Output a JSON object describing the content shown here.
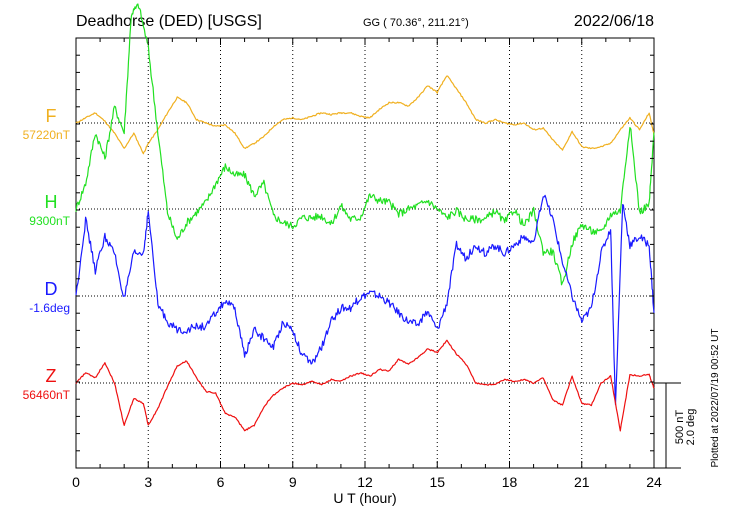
{
  "header": {
    "station": "Deadhorse (DED)  [USGS]",
    "coords": "GG ( 70.36°, 211.21°)",
    "date": "2022/06/18"
  },
  "side_note": "Plotted at 2022/07/19 00:52 UT",
  "scale_bar": {
    "line1": "500 nT",
    "line2": "2.0 deg"
  },
  "chart_data": {
    "type": "line",
    "xlabel": "U T (hour)",
    "xlim": [
      0,
      24
    ],
    "xticks": [
      "0",
      "3",
      "6",
      "9",
      "12",
      "15",
      "18",
      "21",
      "24"
    ],
    "scale_nT_per_bar": 500,
    "series": [
      {
        "name": "F",
        "baseline_label": "57220nT",
        "color": "#f0b020",
        "x": [
          0,
          0.4,
          0.8,
          1.2,
          1.6,
          2.0,
          2.4,
          2.8,
          3.0,
          3.4,
          3.8,
          4.2,
          4.6,
          5.0,
          5.4,
          5.8,
          6.2,
          6.6,
          7.0,
          7.4,
          7.8,
          8.2,
          8.6,
          9.0,
          9.4,
          9.8,
          10.2,
          10.6,
          11.0,
          11.4,
          11.8,
          12.2,
          12.6,
          13.0,
          13.4,
          13.8,
          14.2,
          14.6,
          15.0,
          15.4,
          15.8,
          16.2,
          16.6,
          17.0,
          17.4,
          17.8,
          18.2,
          18.6,
          19.0,
          19.4,
          19.8,
          20.2,
          20.6,
          21.0,
          21.4,
          21.8,
          22.2,
          22.6,
          23.0,
          23.4,
          23.8,
          24.0
        ],
        "values": [
          0,
          30,
          60,
          10,
          -60,
          -150,
          -60,
          -180,
          -120,
          -40,
          60,
          150,
          120,
          20,
          0,
          -20,
          -10,
          -60,
          -150,
          -120,
          -80,
          -20,
          20,
          30,
          20,
          40,
          60,
          50,
          60,
          60,
          40,
          30,
          80,
          120,
          120,
          100,
          150,
          220,
          180,
          280,
          200,
          120,
          20,
          0,
          20,
          0,
          -10,
          0,
          -40,
          -30,
          -100,
          -160,
          -50,
          -140,
          -150,
          -140,
          -120,
          -40,
          30,
          -40,
          60,
          -70
        ]
      },
      {
        "name": "H",
        "baseline_label": "9300nT",
        "color": "#22e022",
        "x": [
          0,
          0.4,
          0.8,
          1.2,
          1.6,
          2.0,
          2.3,
          2.6,
          3.0,
          3.4,
          3.8,
          4.2,
          4.6,
          5.0,
          5.4,
          5.8,
          6.2,
          6.6,
          7.0,
          7.4,
          7.8,
          8.2,
          8.6,
          9.0,
          9.4,
          9.8,
          10.2,
          10.6,
          11.0,
          11.4,
          11.8,
          12.2,
          12.6,
          13.0,
          13.4,
          13.8,
          14.2,
          14.6,
          15.0,
          15.4,
          15.8,
          16.2,
          16.6,
          17.0,
          17.4,
          17.8,
          18.2,
          18.6,
          19.0,
          19.4,
          19.8,
          20.2,
          20.6,
          21.0,
          21.4,
          21.8,
          22.2,
          22.6,
          23.0,
          23.4,
          23.8,
          24.0
        ],
        "values": [
          0,
          150,
          450,
          300,
          600,
          450,
          1150,
          1200,
          950,
          450,
          -20,
          -180,
          -80,
          -20,
          40,
          150,
          250,
          200,
          200,
          80,
          150,
          -40,
          -80,
          -100,
          -50,
          -50,
          -40,
          -90,
          20,
          -60,
          -50,
          80,
          50,
          40,
          -30,
          0,
          20,
          50,
          0,
          -50,
          -10,
          -60,
          -60,
          -60,
          -10,
          -80,
          0,
          -100,
          -10,
          -250,
          -250,
          -450,
          -200,
          -90,
          -130,
          -140,
          -30,
          -10,
          500,
          -20,
          30,
          450
        ]
      },
      {
        "name": "D",
        "baseline_label": "-1.6deg",
        "color": "#1a1aff",
        "x": [
          0,
          0.4,
          0.8,
          1.2,
          1.6,
          2.0,
          2.4,
          2.8,
          3.0,
          3.4,
          3.8,
          4.2,
          4.6,
          5.0,
          5.4,
          5.8,
          6.2,
          6.6,
          7.0,
          7.4,
          7.8,
          8.2,
          8.6,
          9.0,
          9.4,
          9.8,
          10.2,
          10.6,
          11.0,
          11.4,
          11.8,
          12.2,
          12.6,
          13.0,
          13.4,
          13.8,
          14.2,
          14.6,
          15.0,
          15.4,
          15.8,
          16.2,
          16.6,
          17.0,
          17.4,
          17.8,
          18.2,
          18.6,
          19.0,
          19.4,
          19.8,
          20.2,
          20.6,
          21.0,
          21.4,
          21.8,
          22.2,
          22.4,
          22.7,
          23.0,
          23.4,
          23.8,
          24.0
        ],
        "values": [
          0,
          450,
          150,
          350,
          250,
          -20,
          250,
          250,
          500,
          -50,
          -150,
          -200,
          -200,
          -180,
          -180,
          -100,
          -30,
          -80,
          -350,
          -200,
          -250,
          -300,
          -150,
          -200,
          -350,
          -400,
          -300,
          -150,
          -70,
          -70,
          -10,
          20,
          0,
          -40,
          -100,
          -150,
          -170,
          -90,
          -200,
          -40,
          300,
          220,
          300,
          250,
          300,
          250,
          300,
          350,
          300,
          600,
          450,
          200,
          0,
          -150,
          -70,
          250,
          400,
          -650,
          550,
          300,
          350,
          300,
          -100
        ]
      },
      {
        "name": "Z",
        "baseline_label": "56460nT",
        "color": "#ee1010",
        "x": [
          0,
          0.4,
          0.8,
          1.2,
          1.6,
          2.0,
          2.4,
          2.8,
          3.0,
          3.4,
          3.8,
          4.2,
          4.6,
          5.0,
          5.4,
          5.8,
          6.2,
          6.6,
          7.0,
          7.4,
          7.8,
          8.2,
          8.6,
          9.0,
          9.4,
          9.8,
          10.2,
          10.6,
          11.0,
          11.4,
          11.8,
          12.2,
          12.6,
          13.0,
          13.4,
          13.8,
          14.2,
          14.6,
          15.0,
          15.4,
          15.8,
          16.2,
          16.6,
          17.0,
          17.4,
          17.8,
          18.2,
          18.6,
          19.0,
          19.4,
          19.8,
          20.2,
          20.6,
          21.0,
          21.4,
          21.8,
          22.2,
          22.6,
          23.0,
          23.4,
          23.8,
          24.0
        ],
        "values": [
          0,
          60,
          30,
          120,
          0,
          -250,
          -90,
          -120,
          -250,
          -150,
          -20,
          100,
          130,
          30,
          -50,
          -60,
          -180,
          -200,
          -280,
          -250,
          -140,
          -70,
          -30,
          0,
          -10,
          10,
          -10,
          20,
          10,
          40,
          60,
          40,
          80,
          70,
          140,
          110,
          150,
          200,
          180,
          250,
          170,
          110,
          0,
          -10,
          -10,
          20,
          10,
          20,
          0,
          30,
          -100,
          -130,
          40,
          -120,
          -130,
          0,
          40,
          -280,
          50,
          40,
          50,
          -30
        ]
      }
    ]
  }
}
